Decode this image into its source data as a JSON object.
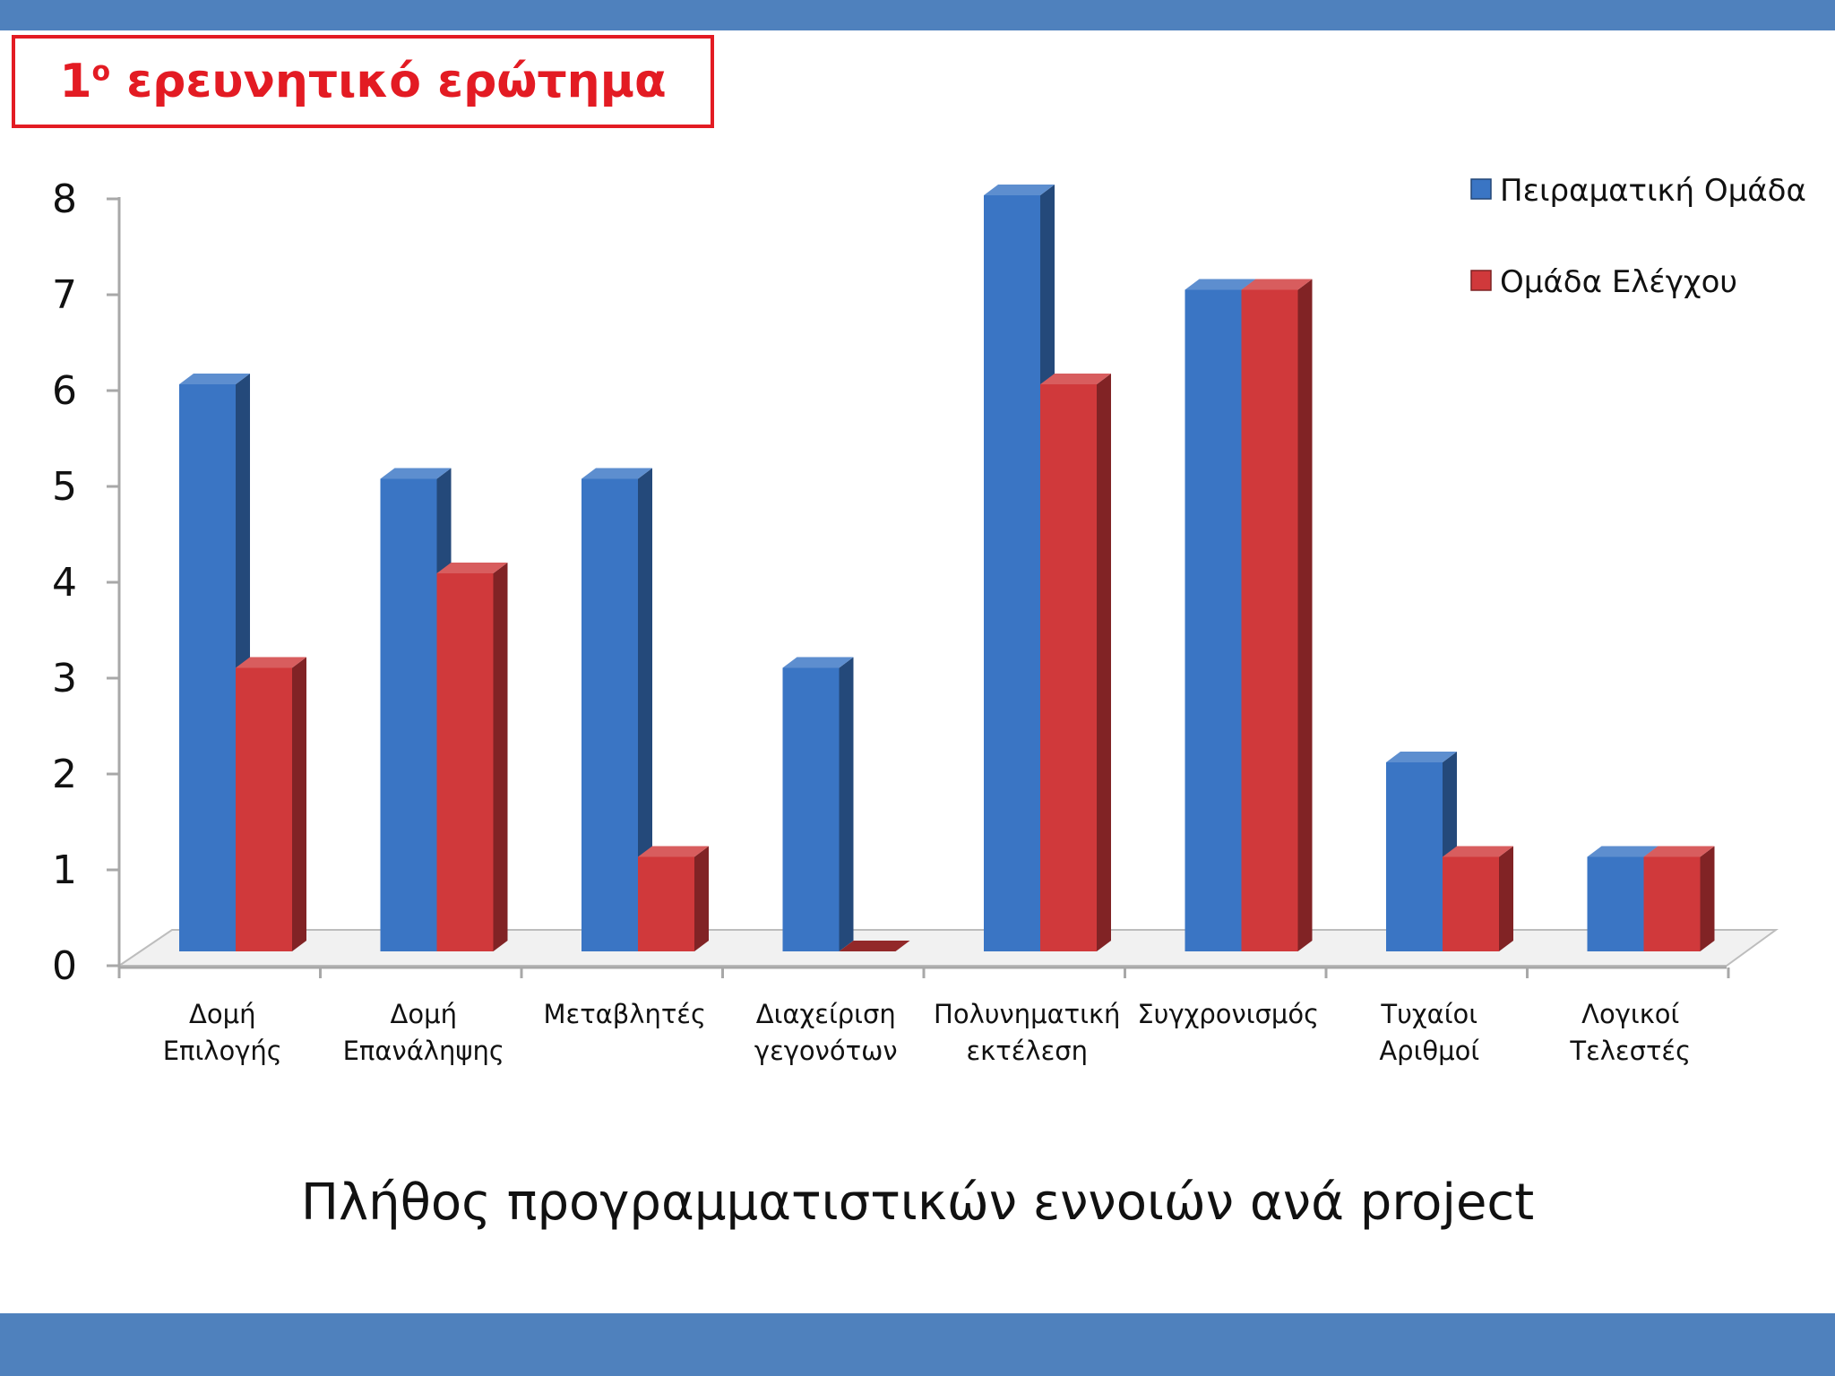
{
  "slide": {
    "title_number": "1",
    "title_superscript": "o",
    "title_text": "ερευνητικό ερώτημα",
    "caption": "Πλήθος προγραμματιστικών εννοιών ανά project",
    "band_color": "#4f81bd",
    "title_color": "#e31b23"
  },
  "chart_data": {
    "type": "bar",
    "title": "",
    "xlabel": "",
    "ylabel": "",
    "ylim": [
      0,
      8
    ],
    "yticks": [
      "0",
      "1",
      "2",
      "3",
      "4",
      "5",
      "6",
      "7",
      "8"
    ],
    "grid": false,
    "legend_position": "top-right",
    "style": "3d-clustered-column",
    "categories": [
      [
        "Δομή",
        "Επιλογής"
      ],
      [
        "Δομή",
        "Επανάληψης"
      ],
      [
        "Μεταβλητές"
      ],
      [
        "Διαχείριση",
        "γεγονότων"
      ],
      [
        "Πολυνηματική",
        "εκτέλεση"
      ],
      [
        "Συγχρονισμός"
      ],
      [
        "Τυχαίοι",
        "Αριθμοί"
      ],
      [
        "Λογικοί",
        "Τελεστές"
      ]
    ],
    "series": [
      {
        "name": "Πειραματική Ομάδα",
        "color": "#3a75c4",
        "values": [
          6,
          5,
          5,
          3,
          8,
          7,
          2,
          1
        ]
      },
      {
        "name": "Ομάδα Ελέγχου",
        "color": "#d0393b",
        "values": [
          3,
          4,
          1,
          0,
          6,
          7,
          1,
          1
        ]
      }
    ]
  }
}
